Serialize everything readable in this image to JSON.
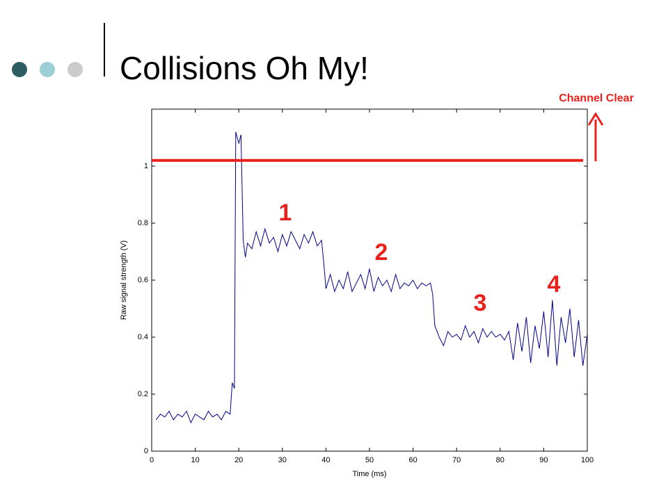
{
  "title": "Collisions Oh My!",
  "chart_data": {
    "type": "line",
    "xlabel": "Time (ms)",
    "ylabel": "Raw signal strength (V)",
    "xlim": [
      0,
      100
    ],
    "ylim": [
      0,
      1.2
    ],
    "xticks": [
      0,
      10,
      20,
      30,
      40,
      50,
      60,
      70,
      80,
      90,
      100
    ],
    "yticks": [
      0,
      0.2,
      0.4,
      0.6,
      0.8,
      1
    ],
    "threshold": 1.02,
    "threshold_color": "#e8211d",
    "threshold_label": "Channel Clear",
    "annotations": [
      "1",
      "2",
      "3",
      "4"
    ],
    "x": [
      1,
      2,
      3,
      4,
      5,
      6,
      7,
      8,
      9,
      10,
      11,
      12,
      13,
      14,
      15,
      16,
      17,
      18,
      18.5,
      19,
      19.3,
      20,
      20.5,
      21,
      21.5,
      22,
      23,
      24,
      25,
      26,
      27,
      28,
      29,
      30,
      31,
      32,
      33,
      34,
      35,
      36,
      37,
      38,
      39,
      39.5,
      40,
      41,
      42,
      43,
      44,
      45,
      46,
      47,
      48,
      49,
      50,
      51,
      52,
      53,
      54,
      55,
      56,
      57,
      58,
      59,
      60,
      61,
      62,
      63,
      64,
      64.5,
      65,
      66,
      67,
      68,
      69,
      70,
      71,
      72,
      73,
      74,
      75,
      76,
      77,
      78,
      79,
      80,
      81,
      82,
      83,
      84,
      85,
      86,
      87,
      88,
      89,
      90,
      91,
      92,
      93,
      94,
      95,
      96,
      97,
      98,
      99,
      100
    ],
    "series": [
      {
        "color": "#00008b",
        "values": [
          0.11,
          0.13,
          0.12,
          0.14,
          0.11,
          0.13,
          0.12,
          0.14,
          0.1,
          0.13,
          0.12,
          0.11,
          0.14,
          0.12,
          0.13,
          0.11,
          0.14,
          0.13,
          0.24,
          0.22,
          1.12,
          1.08,
          1.11,
          0.74,
          0.68,
          0.73,
          0.71,
          0.77,
          0.72,
          0.78,
          0.73,
          0.75,
          0.7,
          0.76,
          0.72,
          0.77,
          0.74,
          0.71,
          0.76,
          0.73,
          0.77,
          0.72,
          0.74,
          0.66,
          0.57,
          0.62,
          0.56,
          0.6,
          0.57,
          0.63,
          0.56,
          0.59,
          0.62,
          0.57,
          0.64,
          0.56,
          0.61,
          0.58,
          0.6,
          0.56,
          0.62,
          0.57,
          0.59,
          0.58,
          0.6,
          0.57,
          0.59,
          0.58,
          0.59,
          0.55,
          0.44,
          0.4,
          0.37,
          0.42,
          0.4,
          0.41,
          0.39,
          0.44,
          0.4,
          0.42,
          0.38,
          0.43,
          0.4,
          0.42,
          0.4,
          0.41,
          0.39,
          0.42,
          0.32,
          0.45,
          0.35,
          0.47,
          0.31,
          0.44,
          0.36,
          0.49,
          0.33,
          0.53,
          0.3,
          0.47,
          0.38,
          0.5,
          0.33,
          0.46,
          0.3,
          0.41
        ]
      }
    ]
  }
}
